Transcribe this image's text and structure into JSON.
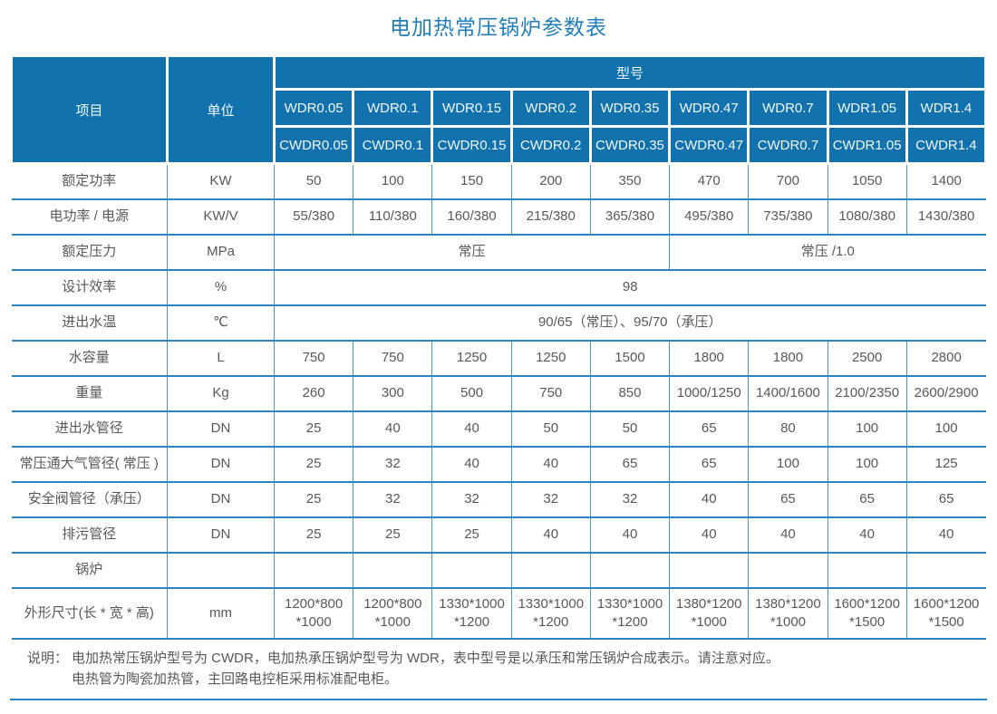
{
  "title": "电加热常压锅炉参数表",
  "colors": {
    "header_bg": "#1172ae",
    "header_text": "#f2f7fb",
    "grid_horizontal": "#2a85c1",
    "grid_vertical": "#4896c8",
    "title_text": "#1f7db9",
    "body_text": "#57585c"
  },
  "table": {
    "item_header": "项目",
    "unit_header": "单位",
    "model_group_header": "型号",
    "model_rows": [
      [
        "WDR0.05",
        "WDR0.1",
        "WDR0.15",
        "WDR0.2",
        "WDR0.35",
        "WDR0.47",
        "WDR0.7",
        "WDR1.05",
        "WDR1.4"
      ],
      [
        "CWDR0.05",
        "CWDR0.1",
        "CWDR0.15",
        "CWDR0.2",
        "CWDR0.35",
        "CWDR0.47",
        "CWDR0.7",
        "CWDR1.05",
        "CWDR1.4"
      ]
    ],
    "rows": [
      {
        "label": "额定功率",
        "unit": "KW",
        "cells": [
          {
            "text": "50",
            "span": 1
          },
          {
            "text": "100",
            "span": 1
          },
          {
            "text": "150",
            "span": 1
          },
          {
            "text": "200",
            "span": 1
          },
          {
            "text": "350",
            "span": 1
          },
          {
            "text": "470",
            "span": 1
          },
          {
            "text": "700",
            "span": 1
          },
          {
            "text": "1050",
            "span": 1
          },
          {
            "text": "1400",
            "span": 1
          }
        ]
      },
      {
        "label": "电功率 / 电源",
        "unit": "KW/V",
        "cells": [
          {
            "text": "55/380",
            "span": 1
          },
          {
            "text": "110/380",
            "span": 1
          },
          {
            "text": "160/380",
            "span": 1
          },
          {
            "text": "215/380",
            "span": 1
          },
          {
            "text": "365/380",
            "span": 1
          },
          {
            "text": "495/380",
            "span": 1
          },
          {
            "text": "735/380",
            "span": 1
          },
          {
            "text": "1080/380",
            "span": 1
          },
          {
            "text": "1430/380",
            "span": 1
          }
        ]
      },
      {
        "label": "额定压力",
        "unit": "MPa",
        "cells": [
          {
            "text": "常压",
            "span": 5
          },
          {
            "text": "常压 /1.0",
            "span": 4
          }
        ]
      },
      {
        "label": "设计效率",
        "unit": "%",
        "cells": [
          {
            "text": "98",
            "span": 9
          }
        ]
      },
      {
        "label": "进出水温",
        "unit": "℃",
        "cells": [
          {
            "text": "90/65（常压）、95/70（承压）",
            "span": 9
          }
        ]
      },
      {
        "label": "水容量",
        "unit": "L",
        "cells": [
          {
            "text": "750",
            "span": 1
          },
          {
            "text": "750",
            "span": 1
          },
          {
            "text": "1250",
            "span": 1
          },
          {
            "text": "1250",
            "span": 1
          },
          {
            "text": "1500",
            "span": 1
          },
          {
            "text": "1800",
            "span": 1
          },
          {
            "text": "1800",
            "span": 1
          },
          {
            "text": "2500",
            "span": 1
          },
          {
            "text": "2800",
            "span": 1
          }
        ]
      },
      {
        "label": "重量",
        "unit": "Kg",
        "cells": [
          {
            "text": "260",
            "span": 1
          },
          {
            "text": "300",
            "span": 1
          },
          {
            "text": "500",
            "span": 1
          },
          {
            "text": "750",
            "span": 1
          },
          {
            "text": "850",
            "span": 1
          },
          {
            "text": "1000/1250",
            "span": 1
          },
          {
            "text": "1400/1600",
            "span": 1
          },
          {
            "text": "2100/2350",
            "span": 1
          },
          {
            "text": "2600/2900",
            "span": 1
          }
        ]
      },
      {
        "label": "进出水管径",
        "unit": "DN",
        "cells": [
          {
            "text": "25",
            "span": 1
          },
          {
            "text": "40",
            "span": 1
          },
          {
            "text": "40",
            "span": 1
          },
          {
            "text": "50",
            "span": 1
          },
          {
            "text": "50",
            "span": 1
          },
          {
            "text": "65",
            "span": 1
          },
          {
            "text": "80",
            "span": 1
          },
          {
            "text": "100",
            "span": 1
          },
          {
            "text": "100",
            "span": 1
          }
        ]
      },
      {
        "label": "常压通大气管径( 常压 )",
        "unit": "DN",
        "cells": [
          {
            "text": "25",
            "span": 1
          },
          {
            "text": "32",
            "span": 1
          },
          {
            "text": "40",
            "span": 1
          },
          {
            "text": "40",
            "span": 1
          },
          {
            "text": "65",
            "span": 1
          },
          {
            "text": "65",
            "span": 1
          },
          {
            "text": "100",
            "span": 1
          },
          {
            "text": "100",
            "span": 1
          },
          {
            "text": "125",
            "span": 1
          }
        ]
      },
      {
        "label": "安全阀管径（承压）",
        "unit": "DN",
        "cells": [
          {
            "text": "25",
            "span": 1
          },
          {
            "text": "32",
            "span": 1
          },
          {
            "text": "32",
            "span": 1
          },
          {
            "text": "32",
            "span": 1
          },
          {
            "text": "32",
            "span": 1
          },
          {
            "text": "40",
            "span": 1
          },
          {
            "text": "65",
            "span": 1
          },
          {
            "text": "65",
            "span": 1
          },
          {
            "text": "65",
            "span": 1
          }
        ]
      },
      {
        "label": "排污管径",
        "unit": "DN",
        "cells": [
          {
            "text": "25",
            "span": 1
          },
          {
            "text": "25",
            "span": 1
          },
          {
            "text": "25",
            "span": 1
          },
          {
            "text": "40",
            "span": 1
          },
          {
            "text": "40",
            "span": 1
          },
          {
            "text": "40",
            "span": 1
          },
          {
            "text": "40",
            "span": 1
          },
          {
            "text": "40",
            "span": 1
          },
          {
            "text": "40",
            "span": 1
          }
        ]
      },
      {
        "label": "锅炉",
        "unit": "",
        "cells": [
          {
            "text": "",
            "span": 1
          },
          {
            "text": "",
            "span": 1
          },
          {
            "text": "",
            "span": 1
          },
          {
            "text": "",
            "span": 1
          },
          {
            "text": "",
            "span": 1
          },
          {
            "text": "",
            "span": 1
          },
          {
            "text": "",
            "span": 1
          },
          {
            "text": "",
            "span": 1
          },
          {
            "text": "",
            "span": 1
          }
        ]
      },
      {
        "label": "外形尺寸(长 * 宽 * 高)",
        "unit": "mm",
        "cells": [
          {
            "text": "1200*800\n*1000",
            "span": 1
          },
          {
            "text": "1200*800\n*1000",
            "span": 1
          },
          {
            "text": "1330*1000\n*1200",
            "span": 1
          },
          {
            "text": "1330*1000\n*1200",
            "span": 1
          },
          {
            "text": "1330*1000\n*1200",
            "span": 1
          },
          {
            "text": "1380*1200\n*1000",
            "span": 1
          },
          {
            "text": "1380*1200\n*1000",
            "span": 1
          },
          {
            "text": "1600*1200\n*1500",
            "span": 1
          },
          {
            "text": "1600*1200\n*1500",
            "span": 1
          }
        ]
      }
    ]
  },
  "note": {
    "label": "说明：",
    "lines": [
      "电加热常压锅炉型号为 CWDR，电加热承压锅炉型号为 WDR，表中型号是以承压和常压锅炉合成表示。请注意对应。",
      "电热管为陶瓷加热管，主回路电控柜采用标准配电柜。"
    ]
  }
}
